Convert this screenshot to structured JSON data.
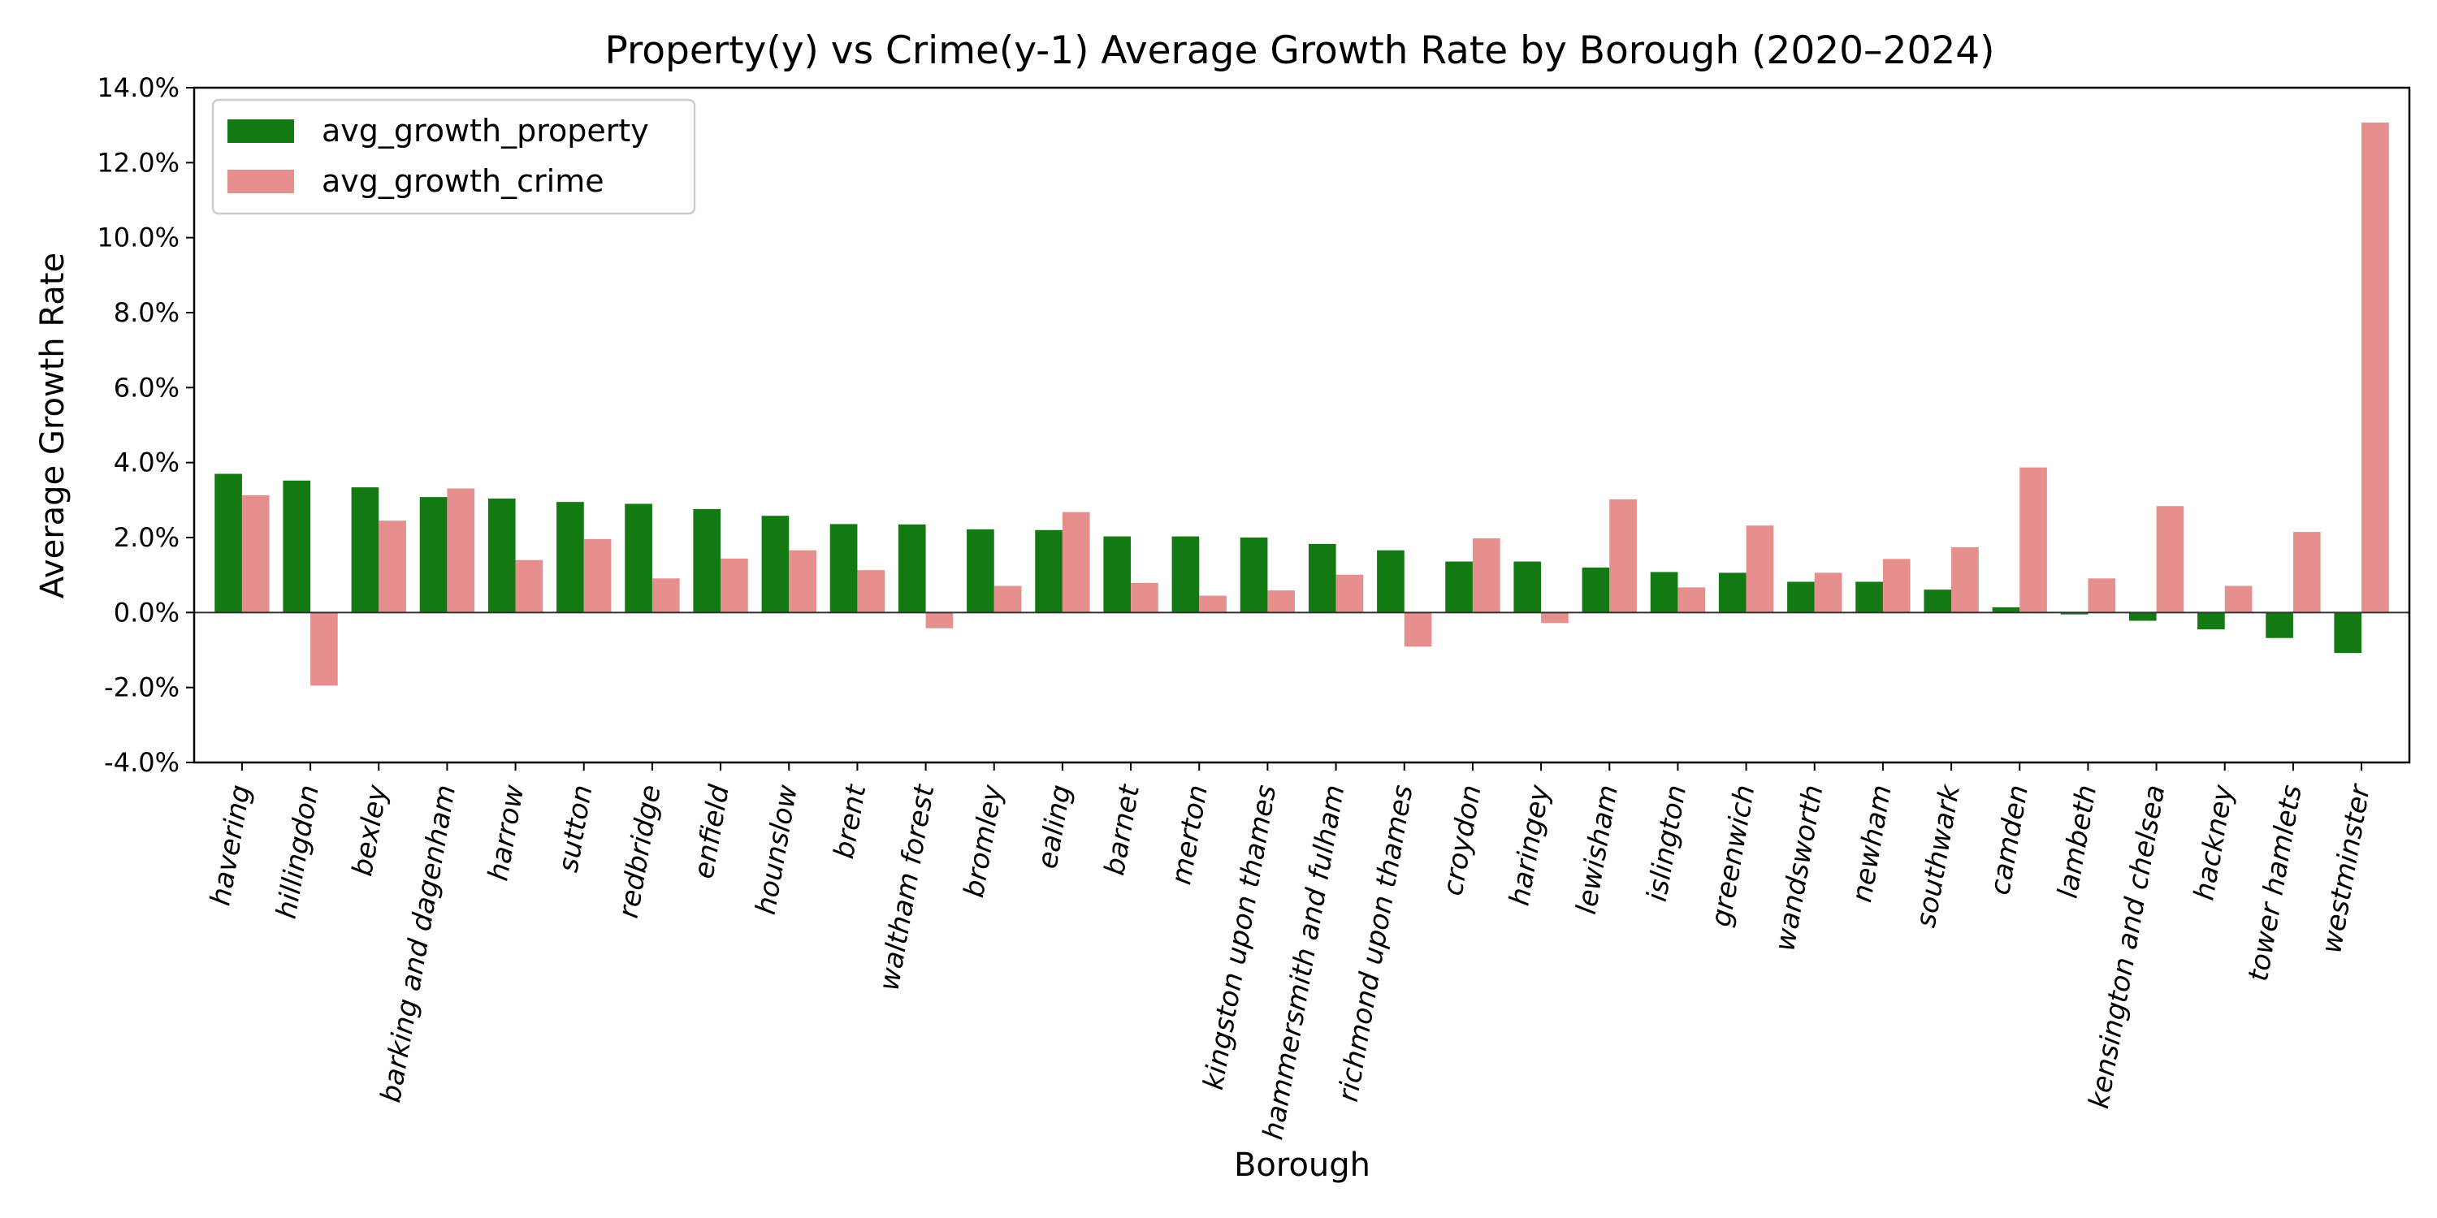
{
  "chart_data": {
    "type": "bar",
    "title": "Property(y) vs Crime(y-1) Average Growth Rate by Borough (2020–2024)",
    "xlabel": "Borough",
    "ylabel": "Average Growth Rate",
    "ylim": [
      -4.0,
      14.0
    ],
    "y_ticks": [
      -4.0,
      -2.0,
      0.0,
      2.0,
      4.0,
      6.0,
      8.0,
      10.0,
      12.0,
      14.0
    ],
    "y_tick_labels": [
      "-4.0%",
      "-2.0%",
      "0.0%",
      "2.0%",
      "4.0%",
      "6.0%",
      "8.0%",
      "10.0%",
      "12.0%",
      "14.0%"
    ],
    "y_unit": "percent",
    "grid": false,
    "zero_line": true,
    "legend_position": "top-left",
    "categories": [
      "havering",
      "hillingdon",
      "bexley",
      "barking and dagenham",
      "harrow",
      "sutton",
      "redbridge",
      "enfield",
      "hounslow",
      "brent",
      "waltham forest",
      "bromley",
      "ealing",
      "barnet",
      "merton",
      "kingston upon thames",
      "hammersmith and fulham",
      "richmond upon thames",
      "croydon",
      "haringey",
      "lewisham",
      "islington",
      "greenwich",
      "wandsworth",
      "newham",
      "southwark",
      "camden",
      "lambeth",
      "kensington and chelsea",
      "hackney",
      "tower hamlets",
      "westminster"
    ],
    "series": [
      {
        "name": "avg_growth_property",
        "color": "#137a13",
        "values": [
          3.7,
          3.52,
          3.34,
          3.08,
          3.04,
          2.95,
          2.9,
          2.76,
          2.58,
          2.36,
          2.35,
          2.22,
          2.2,
          2.03,
          2.03,
          2.0,
          1.83,
          1.66,
          1.36,
          1.36,
          1.2,
          1.08,
          1.06,
          0.82,
          0.82,
          0.61,
          0.14,
          -0.05,
          -0.22,
          -0.45,
          -0.68,
          -1.08
        ]
      },
      {
        "name": "avg_growth_crime",
        "color": "#e68f8f",
        "values": [
          3.13,
          -1.95,
          2.45,
          3.31,
          1.4,
          1.96,
          0.91,
          1.44,
          1.66,
          1.13,
          -0.42,
          0.71,
          2.68,
          0.79,
          0.45,
          0.59,
          1.01,
          -0.91,
          1.98,
          -0.28,
          3.02,
          0.67,
          2.32,
          1.06,
          1.43,
          1.74,
          3.87,
          0.91,
          2.84,
          0.71,
          2.15,
          13.07
        ]
      }
    ]
  }
}
